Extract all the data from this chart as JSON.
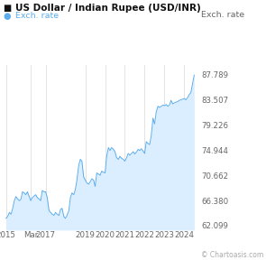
{
  "title": "US Dollar / Indian Rupee (USD/INR)",
  "legend_label": "Exch. rate",
  "ylabel_right": "Exch. rate",
  "watermark": "© Chartoasis.com",
  "yticks": [
    62.099,
    66.38,
    70.662,
    74.944,
    79.226,
    83.507,
    87.789
  ],
  "xtick_labels": [
    "2015",
    "Mar",
    "2017",
    "2019",
    "2020",
    "2021",
    "2022",
    "2023",
    "2024"
  ],
  "xtick_positions": [
    2015.0,
    2016.25,
    2017.0,
    2019.0,
    2020.0,
    2021.0,
    2022.0,
    2023.0,
    2024.0
  ],
  "xlim": [
    2014.83,
    2024.7
  ],
  "ylim": [
    61.5,
    89.5
  ],
  "line_color": "#5badee",
  "fill_color": "#daeeff",
  "background_color": "#ffffff",
  "title_fontsize": 7.5,
  "legend_fontsize": 6.8,
  "tick_fontsize": 6.2,
  "watermark_fontsize": 5.5,
  "grid_color": "#d8d8d8",
  "title_box_color": "#111111",
  "legend_dot_color": "#5badee",
  "data_x": [
    2015.0,
    2015.08,
    2015.17,
    2015.25,
    2015.33,
    2015.42,
    2015.5,
    2015.58,
    2015.67,
    2015.75,
    2015.83,
    2015.92,
    2016.0,
    2016.08,
    2016.17,
    2016.25,
    2016.33,
    2016.42,
    2016.5,
    2016.58,
    2016.67,
    2016.75,
    2016.83,
    2016.92,
    2017.0,
    2017.08,
    2017.17,
    2017.25,
    2017.33,
    2017.42,
    2017.5,
    2017.58,
    2017.67,
    2017.75,
    2017.83,
    2017.92,
    2018.0,
    2018.08,
    2018.17,
    2018.25,
    2018.33,
    2018.42,
    2018.5,
    2018.58,
    2018.67,
    2018.75,
    2018.83,
    2018.92,
    2019.0,
    2019.08,
    2019.17,
    2019.25,
    2019.33,
    2019.42,
    2019.5,
    2019.58,
    2019.67,
    2019.75,
    2019.83,
    2019.92,
    2020.0,
    2020.08,
    2020.17,
    2020.25,
    2020.33,
    2020.42,
    2020.5,
    2020.58,
    2020.67,
    2020.75,
    2020.83,
    2020.92,
    2021.0,
    2021.08,
    2021.17,
    2021.25,
    2021.33,
    2021.42,
    2021.5,
    2021.58,
    2021.67,
    2021.75,
    2021.83,
    2021.92,
    2022.0,
    2022.08,
    2022.17,
    2022.25,
    2022.33,
    2022.42,
    2022.5,
    2022.58,
    2022.67,
    2022.75,
    2022.83,
    2022.92,
    2023.0,
    2023.08,
    2023.17,
    2023.25,
    2023.33,
    2023.42,
    2023.5,
    2023.58,
    2023.67,
    2023.75,
    2023.83,
    2023.92,
    2024.0,
    2024.08,
    2024.17,
    2024.25,
    2024.33,
    2024.5
  ],
  "data_y": [
    63.5,
    63.8,
    64.5,
    64.2,
    65.1,
    66.5,
    67.2,
    66.8,
    66.5,
    66.7,
    68.0,
    67.8,
    67.5,
    68.0,
    67.2,
    66.5,
    67.0,
    67.3,
    67.5,
    67.0,
    66.8,
    66.5,
    68.2,
    68.0,
    68.0,
    67.0,
    64.8,
    64.5,
    64.2,
    64.0,
    64.5,
    64.2,
    64.0,
    65.0,
    65.2,
    63.8,
    63.5,
    64.0,
    64.8,
    67.0,
    67.8,
    67.5,
    68.4,
    70.0,
    72.5,
    73.5,
    73.2,
    70.5,
    70.0,
    69.5,
    69.3,
    69.7,
    70.2,
    70.0,
    68.9,
    71.2,
    71.0,
    70.8,
    71.5,
    71.3,
    71.2,
    74.0,
    75.5,
    75.0,
    75.5,
    75.2,
    74.8,
    73.8,
    73.5,
    74.0,
    73.7,
    73.5,
    73.2,
    73.7,
    74.5,
    74.2,
    74.5,
    74.8,
    74.4,
    74.7,
    75.2,
    75.0,
    75.3,
    74.9,
    74.5,
    76.5,
    76.2,
    76.0,
    77.5,
    80.5,
    79.5,
    81.5,
    82.5,
    82.3,
    82.5,
    82.7,
    82.6,
    82.8,
    82.5,
    82.7,
    83.5,
    82.9,
    83.1,
    83.2,
    83.3,
    83.5,
    83.6,
    83.7,
    83.8,
    83.6,
    84.0,
    84.5,
    84.8,
    87.789
  ]
}
